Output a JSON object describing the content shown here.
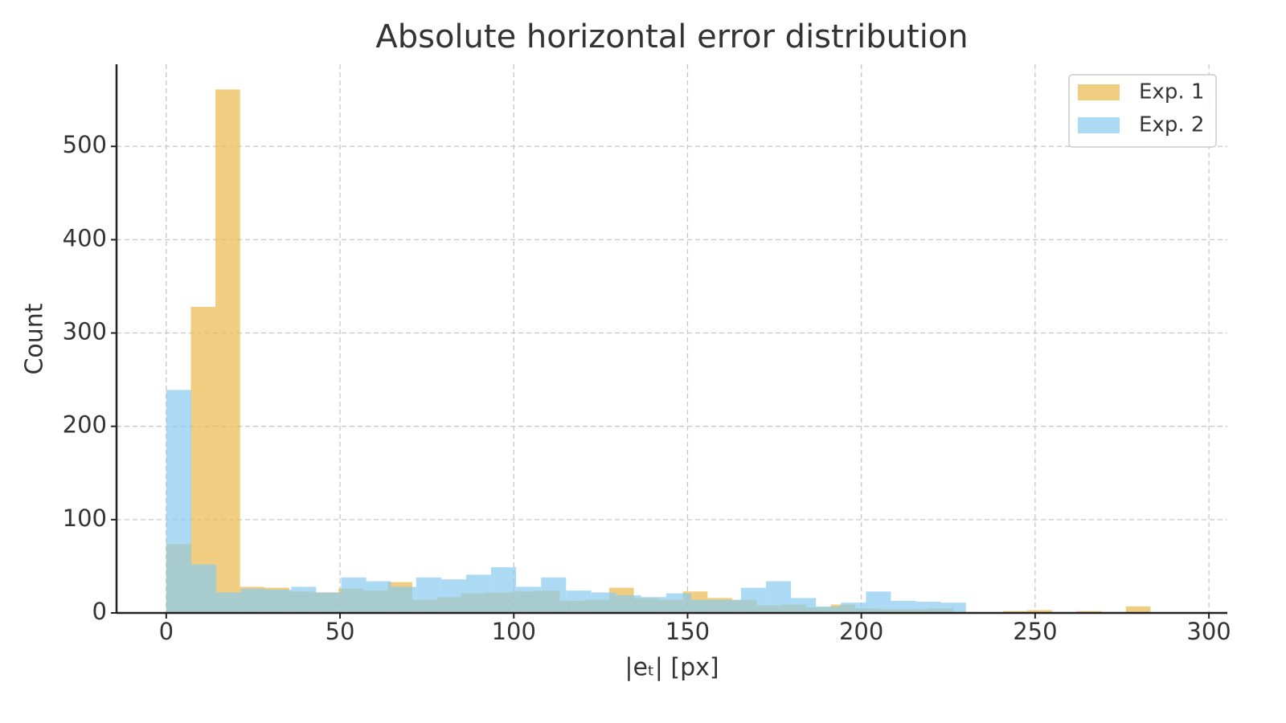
{
  "chart_data": {
    "type": "histogram",
    "title": "Absolute horizontal error distribution",
    "xlabel": "|eₜ| [px]",
    "ylabel": "Count",
    "series": [
      {
        "name": "Exp. 1",
        "color": "#e9b84c",
        "bins": [
          0,
          7.08,
          14.16,
          21.24,
          28.32,
          35.4,
          42.48,
          49.56,
          56.64,
          63.72,
          70.8,
          77.88,
          84.96,
          92.04,
          99.12,
          106.2,
          113.28,
          120.36,
          127.44,
          134.52,
          141.6,
          148.68,
          155.76,
          162.84,
          169.92,
          177,
          184.08,
          191.16,
          198.24,
          205.32,
          212.4,
          219.48,
          226.56,
          233.64,
          240.72,
          247.8,
          254.88,
          261.96,
          269.04,
          276.12,
          283.2
        ],
        "values": [
          74,
          328,
          561,
          28,
          27,
          23,
          22,
          26,
          24,
          33,
          14,
          17,
          21,
          22,
          23,
          24,
          13,
          14,
          27,
          16,
          14,
          23,
          16,
          14,
          8,
          9,
          6,
          9,
          5,
          4,
          4,
          5,
          1,
          0,
          2,
          3,
          1,
          2,
          1,
          7
        ]
      },
      {
        "name": "Exp. 2",
        "color": "#89cbef",
        "bins": [
          0,
          7.19,
          14.38,
          21.57,
          28.76,
          35.95,
          43.14,
          50.33,
          57.52,
          64.71,
          71.9,
          79.09,
          86.28,
          93.47,
          100.66,
          107.85,
          115.04,
          122.23,
          129.42,
          136.61,
          143.8,
          150.99,
          158.18,
          165.37,
          172.56,
          179.75,
          186.94,
          194.13,
          201.32,
          208.51,
          215.7,
          222.89,
          230.08
        ],
        "values": [
          239,
          52,
          22,
          26,
          25,
          28,
          22,
          38,
          34,
          28,
          38,
          36,
          41,
          49,
          28,
          38,
          24,
          22,
          19,
          17,
          21,
          14,
          14,
          27,
          34,
          16,
          7,
          11,
          23,
          13,
          12,
          11
        ]
      }
    ],
    "xlim": [
      -14.3,
      305.3
    ],
    "ylim": [
      0,
      588
    ],
    "xticks": [
      0,
      50,
      100,
      150,
      200,
      250,
      300
    ],
    "yticks": [
      0,
      100,
      200,
      300,
      400,
      500
    ],
    "grid": true,
    "legend": "upper right"
  }
}
